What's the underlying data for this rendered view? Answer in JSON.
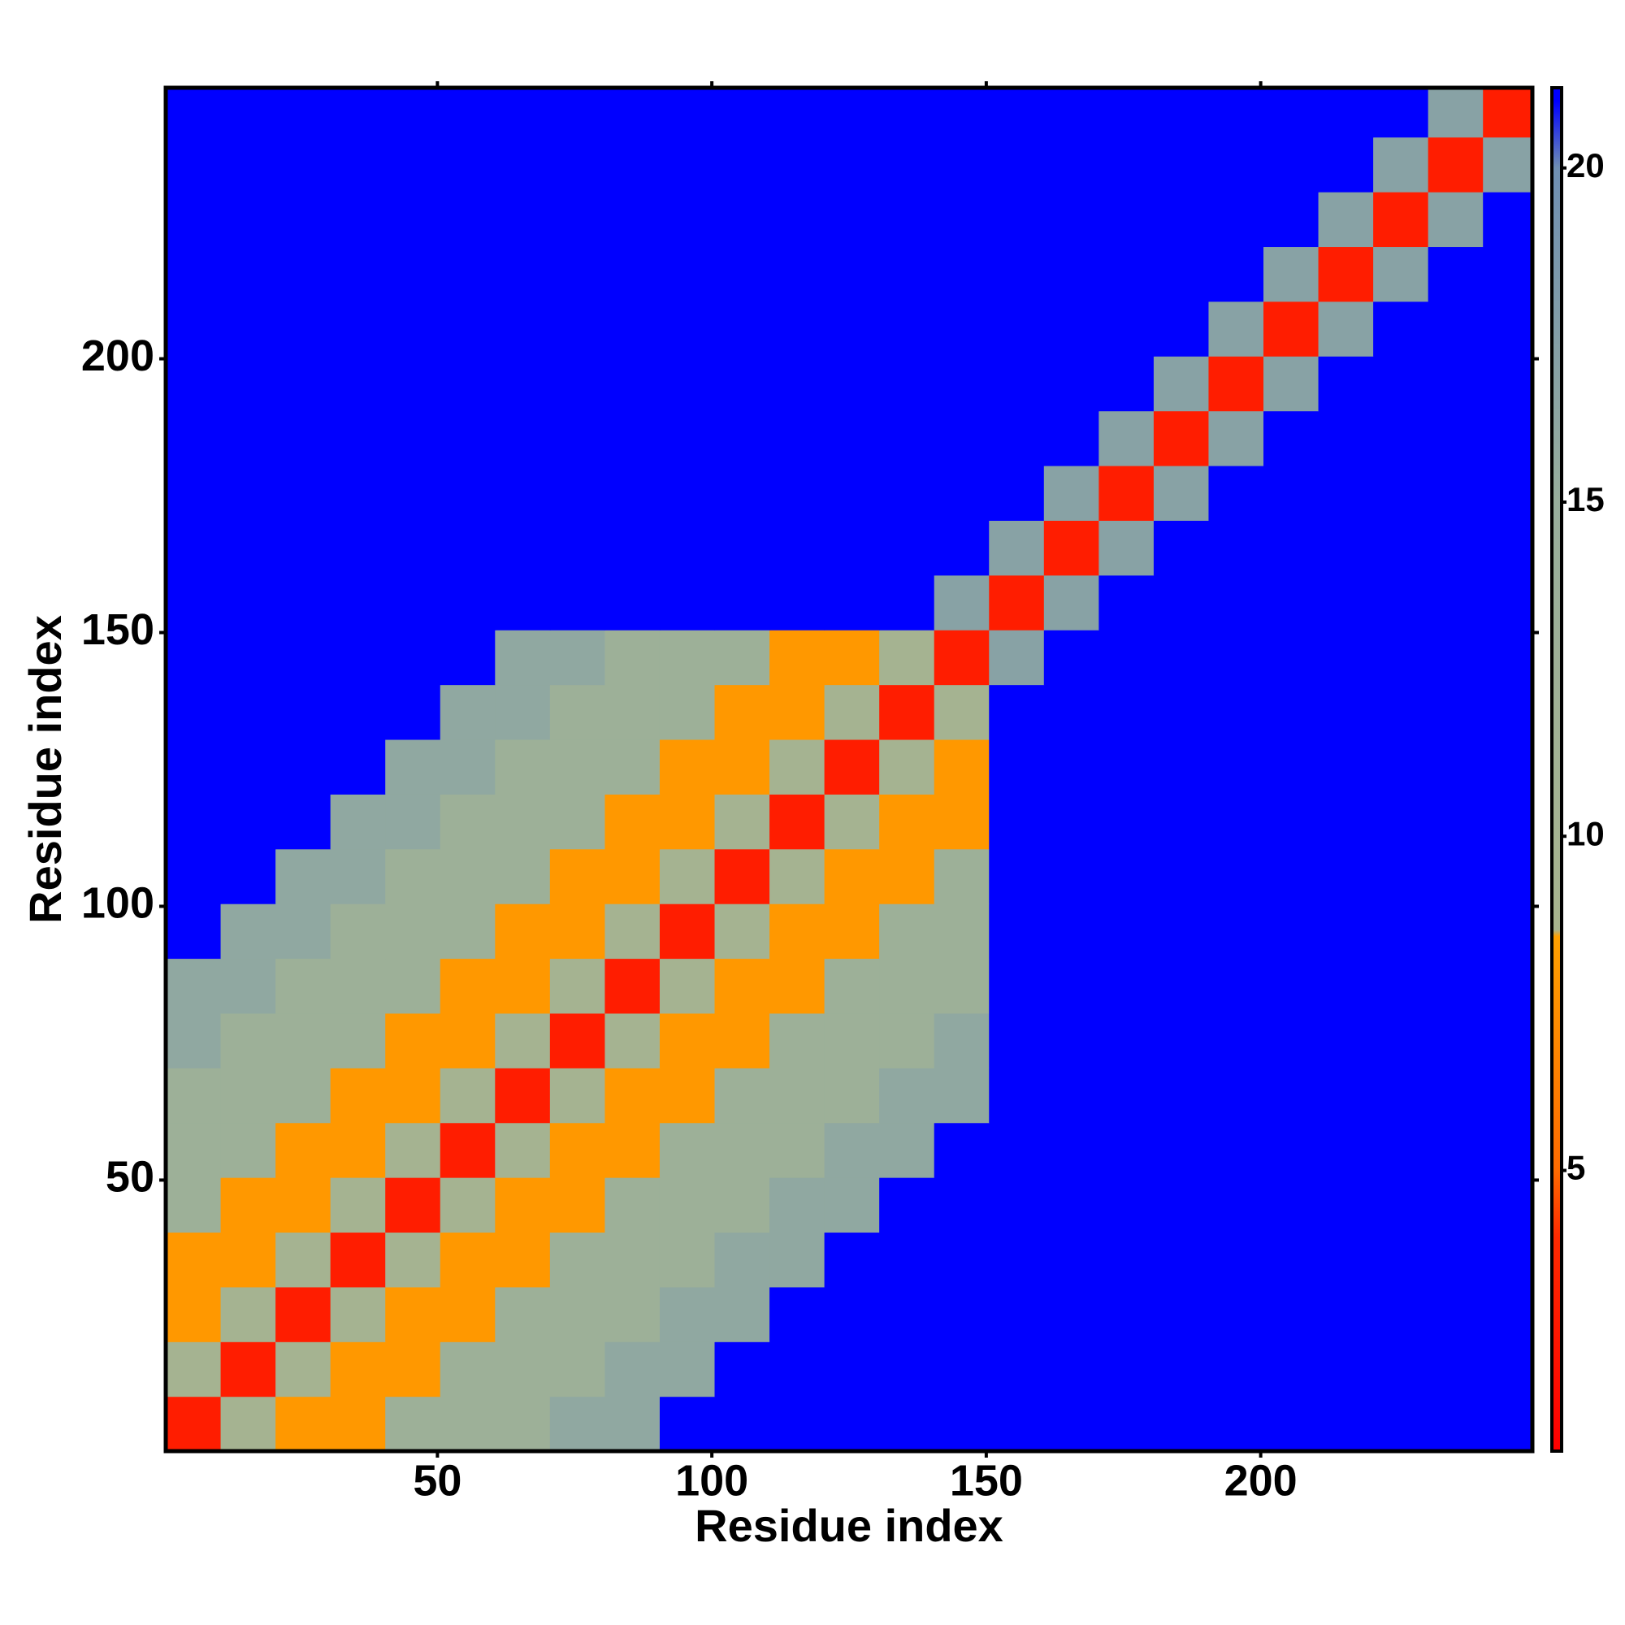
{
  "chart_data": {
    "type": "heatmap",
    "xlabel": "Residue index",
    "ylabel": "Residue index",
    "xlim": [
      0.5,
      249.5
    ],
    "ylim": [
      0.5,
      249.5
    ],
    "xticks": [
      50,
      100,
      150,
      200
    ],
    "yticks": [
      50,
      100,
      150,
      200
    ],
    "bins": [
      0.5,
      10.5,
      20.5,
      30.5,
      40.5,
      50.5,
      60.5,
      70.5,
      80.5,
      90.5,
      100.5,
      110.5,
      120.5,
      130.5,
      140.5,
      150.5,
      160.5,
      170.5,
      180.5,
      190.5,
      200.5,
      210.5,
      220.5,
      230.5,
      240.5,
      249.5
    ],
    "zlim": [
      0.8,
      21.2
    ],
    "zticks": [
      5,
      10,
      15,
      20
    ],
    "colorscale": [
      [
        0.8,
        "#ff0000"
      ],
      [
        4,
        "#ff2a00"
      ],
      [
        5,
        "#ff6a00"
      ],
      [
        8.5,
        "#ffa000"
      ],
      [
        8.6,
        "#a8b48e"
      ],
      [
        15,
        "#98ae9c"
      ],
      [
        20,
        "#6f8fb3"
      ],
      [
        21,
        "#0000ff"
      ]
    ],
    "z": [
      [
        3,
        10,
        8,
        8,
        13,
        13,
        13,
        16,
        16,
        21,
        21,
        21,
        21,
        21,
        21,
        21,
        21,
        21,
        21,
        21,
        21,
        21,
        21,
        21,
        21
      ],
      [
        10,
        3,
        10,
        8,
        8,
        13,
        13,
        13,
        16,
        16,
        21,
        21,
        21,
        21,
        21,
        21,
        21,
        21,
        21,
        21,
        21,
        21,
        21,
        21,
        21
      ],
      [
        8,
        10,
        3,
        10,
        8,
        8,
        13,
        13,
        13,
        16,
        16,
        21,
        21,
        21,
        21,
        21,
        21,
        21,
        21,
        21,
        21,
        21,
        21,
        21,
        21
      ],
      [
        8,
        8,
        10,
        3,
        10,
        8,
        8,
        13,
        13,
        13,
        16,
        16,
        21,
        21,
        21,
        21,
        21,
        21,
        21,
        21,
        21,
        21,
        21,
        21,
        21
      ],
      [
        13,
        8,
        8,
        10,
        3,
        10,
        8,
        8,
        13,
        13,
        13,
        16,
        16,
        21,
        21,
        21,
        21,
        21,
        21,
        21,
        21,
        21,
        21,
        21,
        21
      ],
      [
        13,
        13,
        8,
        8,
        10,
        3,
        10,
        8,
        8,
        13,
        13,
        13,
        16,
        16,
        21,
        21,
        21,
        21,
        21,
        21,
        21,
        21,
        21,
        21,
        21
      ],
      [
        13,
        13,
        13,
        8,
        8,
        10,
        3,
        10,
        8,
        8,
        13,
        13,
        13,
        16,
        16,
        21,
        21,
        21,
        21,
        21,
        21,
        21,
        21,
        21,
        21
      ],
      [
        16,
        13,
        13,
        13,
        8,
        8,
        10,
        3,
        10,
        8,
        8,
        13,
        13,
        13,
        16,
        21,
        21,
        21,
        21,
        21,
        21,
        21,
        21,
        21,
        21
      ],
      [
        16,
        16,
        13,
        13,
        13,
        8,
        8,
        10,
        3,
        10,
        8,
        8,
        13,
        13,
        13,
        21,
        21,
        21,
        21,
        21,
        21,
        21,
        21,
        21,
        21
      ],
      [
        21,
        16,
        16,
        13,
        13,
        13,
        8,
        8,
        10,
        3,
        10,
        8,
        8,
        13,
        13,
        21,
        21,
        21,
        21,
        21,
        21,
        21,
        21,
        21,
        21
      ],
      [
        21,
        21,
        16,
        16,
        13,
        13,
        13,
        8,
        8,
        10,
        3,
        10,
        8,
        8,
        13,
        21,
        21,
        21,
        21,
        21,
        21,
        21,
        21,
        21,
        21
      ],
      [
        21,
        21,
        21,
        16,
        16,
        13,
        13,
        13,
        8,
        8,
        10,
        3,
        10,
        8,
        8,
        21,
        21,
        21,
        21,
        21,
        21,
        21,
        21,
        21,
        21
      ],
      [
        21,
        21,
        21,
        21,
        16,
        16,
        13,
        13,
        13,
        8,
        8,
        10,
        3,
        10,
        8,
        21,
        21,
        21,
        21,
        21,
        21,
        21,
        21,
        21,
        21
      ],
      [
        21,
        21,
        21,
        21,
        21,
        16,
        16,
        13,
        13,
        13,
        8,
        8,
        10,
        3,
        10,
        21,
        21,
        21,
        21,
        21,
        21,
        21,
        21,
        21,
        21
      ],
      [
        21,
        21,
        21,
        21,
        21,
        21,
        16,
        16,
        13,
        13,
        13,
        8,
        8,
        10,
        3,
        17,
        21,
        21,
        21,
        21,
        21,
        21,
        21,
        21,
        21
      ],
      [
        21,
        21,
        21,
        21,
        21,
        21,
        21,
        21,
        21,
        21,
        21,
        21,
        21,
        21,
        17,
        3,
        17,
        21,
        21,
        21,
        21,
        21,
        21,
        21,
        21
      ],
      [
        21,
        21,
        21,
        21,
        21,
        21,
        21,
        21,
        21,
        21,
        21,
        21,
        21,
        21,
        21,
        17,
        3,
        17,
        21,
        21,
        21,
        21,
        21,
        21,
        21
      ],
      [
        21,
        21,
        21,
        21,
        21,
        21,
        21,
        21,
        21,
        21,
        21,
        21,
        21,
        21,
        21,
        21,
        17,
        3,
        17,
        21,
        21,
        21,
        21,
        21,
        21
      ],
      [
        21,
        21,
        21,
        21,
        21,
        21,
        21,
        21,
        21,
        21,
        21,
        21,
        21,
        21,
        21,
        21,
        21,
        17,
        3,
        17,
        21,
        21,
        21,
        21,
        21
      ],
      [
        21,
        21,
        21,
        21,
        21,
        21,
        21,
        21,
        21,
        21,
        21,
        21,
        21,
        21,
        21,
        21,
        21,
        21,
        17,
        3,
        17,
        21,
        21,
        21,
        21
      ],
      [
        21,
        21,
        21,
        21,
        21,
        21,
        21,
        21,
        21,
        21,
        21,
        21,
        21,
        21,
        21,
        21,
        21,
        21,
        21,
        17,
        3,
        17,
        21,
        21,
        21
      ],
      [
        21,
        21,
        21,
        21,
        21,
        21,
        21,
        21,
        21,
        21,
        21,
        21,
        21,
        21,
        21,
        21,
        21,
        21,
        21,
        21,
        17,
        3,
        17,
        21,
        21
      ],
      [
        21,
        21,
        21,
        21,
        21,
        21,
        21,
        21,
        21,
        21,
        21,
        21,
        21,
        21,
        21,
        21,
        21,
        21,
        21,
        21,
        21,
        17,
        3,
        17,
        21
      ],
      [
        21,
        21,
        21,
        21,
        21,
        21,
        21,
        21,
        21,
        21,
        21,
        21,
        21,
        21,
        21,
        21,
        21,
        21,
        21,
        21,
        21,
        21,
        17,
        3,
        17
      ],
      [
        21,
        21,
        21,
        21,
        21,
        21,
        21,
        21,
        21,
        21,
        21,
        21,
        21,
        21,
        21,
        21,
        21,
        21,
        21,
        21,
        21,
        21,
        21,
        17,
        3
      ]
    ]
  }
}
